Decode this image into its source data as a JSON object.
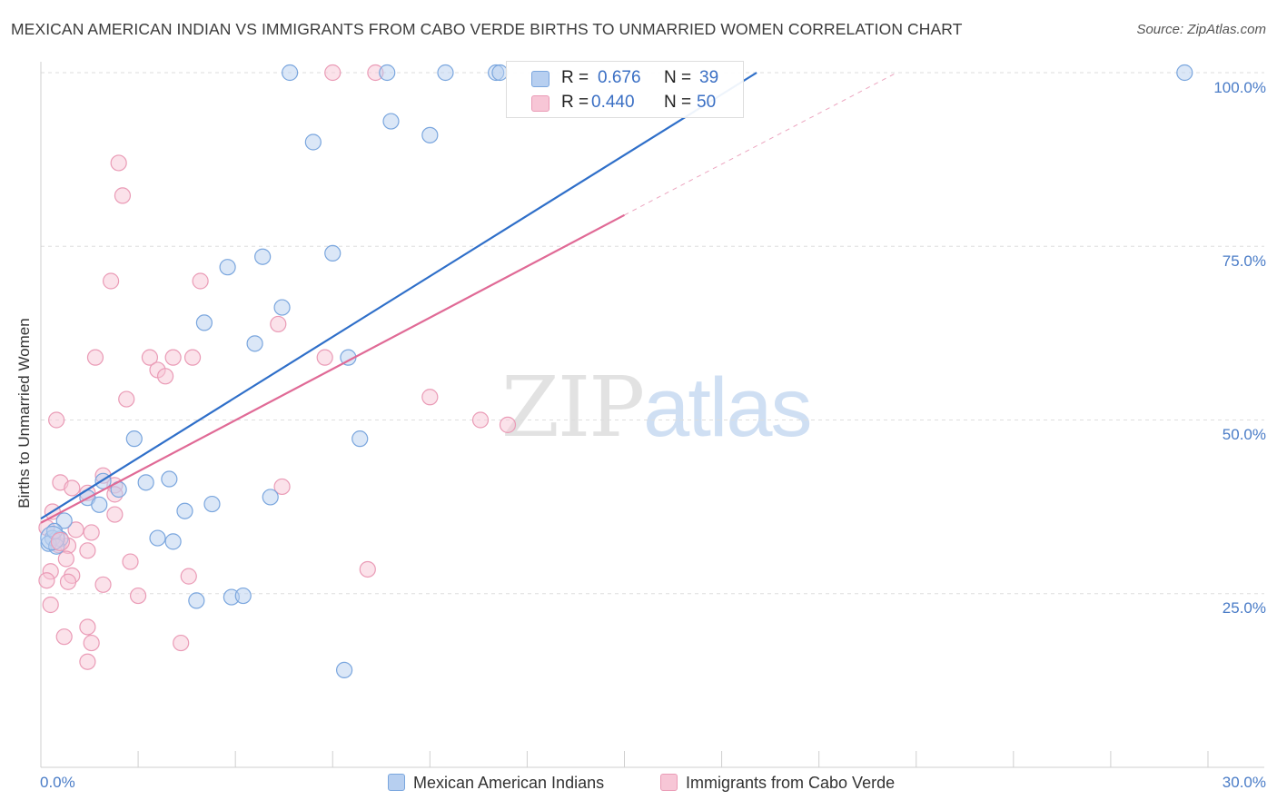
{
  "header": {
    "title": "MEXICAN AMERICAN INDIAN VS IMMIGRANTS FROM CABO VERDE BIRTHS TO UNMARRIED WOMEN CORRELATION CHART",
    "source": "Source: ZipAtlas.com"
  },
  "watermark": {
    "zip": "ZIP",
    "atlas": "atlas"
  },
  "legend": {
    "r_label": "R =",
    "n_label": "N =",
    "rows": [
      {
        "r": "0.676",
        "n": "39"
      },
      {
        "r": "0.440",
        "n": "50"
      }
    ]
  },
  "colors": {
    "blue_fill": "#b7cff0",
    "blue_stroke": "#7aa6de",
    "blue_line": "#2f6fc9",
    "pink_fill": "#f7c6d6",
    "pink_stroke": "#ea9bb6",
    "pink_line": "#e06a96"
  },
  "chart_data": {
    "type": "scatter",
    "title": "MEXICAN AMERICAN INDIAN VS IMMIGRANTS FROM CABO VERDE BIRTHS TO UNMARRIED WOMEN CORRELATION CHART",
    "xlabel": "",
    "ylabel": "Births to Unmarried Women",
    "xlim": [
      0,
      30
    ],
    "ylim": [
      0,
      103
    ],
    "x_tick_labels": [
      {
        "value": 0,
        "label": "0.0%"
      },
      {
        "value": 30,
        "label": "30.0%"
      }
    ],
    "y_tick_labels": [
      {
        "value": 25,
        "label": "25.0%"
      },
      {
        "value": 50,
        "label": "50.0%"
      },
      {
        "value": 75,
        "label": "75.0%"
      },
      {
        "value": 100,
        "label": "100.0%"
      }
    ],
    "legend_position": "bottom-center",
    "series": [
      {
        "name": "Mexican American Indians",
        "r": 0.676,
        "n": 39,
        "trend": {
          "x": [
            0,
            18.4
          ],
          "y": [
            35.8,
            100
          ]
        },
        "points": [
          [
            6.4,
            100
          ],
          [
            8.9,
            100
          ],
          [
            10.4,
            100
          ],
          [
            11.7,
            100
          ],
          [
            11.8,
            100
          ],
          [
            29.4,
            100
          ],
          [
            7.0,
            90.0
          ],
          [
            9.0,
            93.0
          ],
          [
            10.0,
            91.0
          ],
          [
            4.8,
            72.0
          ],
          [
            5.7,
            73.5
          ],
          [
            7.5,
            74.0
          ],
          [
            4.2,
            64.0
          ],
          [
            6.2,
            66.2
          ],
          [
            5.5,
            61.0
          ],
          [
            7.9,
            59.0
          ],
          [
            2.4,
            47.3
          ],
          [
            8.2,
            47.3
          ],
          [
            1.6,
            41.2
          ],
          [
            2.0,
            40.0
          ],
          [
            2.7,
            41.0
          ],
          [
            3.3,
            41.5
          ],
          [
            1.2,
            38.8
          ],
          [
            1.5,
            37.8
          ],
          [
            3.7,
            36.9
          ],
          [
            4.4,
            37.9
          ],
          [
            5.9,
            38.9
          ],
          [
            0.6,
            35.5
          ],
          [
            0.3,
            33.0
          ],
          [
            0.5,
            32.9
          ],
          [
            0.2,
            32.2
          ],
          [
            0.4,
            31.8
          ],
          [
            3.0,
            33.0
          ],
          [
            3.4,
            32.5
          ],
          [
            4.0,
            24.0
          ],
          [
            4.9,
            24.5
          ],
          [
            5.2,
            24.7
          ],
          [
            7.8,
            14.0
          ],
          [
            0.35,
            34.0
          ]
        ]
      },
      {
        "name": "Immigrants from Cabo Verde",
        "r": 0.44,
        "n": 50,
        "trend": {
          "x": [
            0,
            15.0
          ],
          "y": [
            35.2,
            79.5
          ]
        },
        "trend_dashed": {
          "x": [
            15.0,
            22.0
          ],
          "y": [
            79.5,
            100
          ]
        },
        "points": [
          [
            7.5,
            100
          ],
          [
            8.6,
            100
          ],
          [
            2.0,
            87.0
          ],
          [
            2.1,
            82.3
          ],
          [
            1.8,
            70.0
          ],
          [
            4.1,
            70.0
          ],
          [
            6.1,
            63.8
          ],
          [
            1.4,
            59.0
          ],
          [
            2.8,
            59.0
          ],
          [
            3.4,
            59.0
          ],
          [
            3.9,
            59.0
          ],
          [
            7.3,
            59.0
          ],
          [
            3.0,
            57.2
          ],
          [
            3.2,
            56.3
          ],
          [
            2.2,
            53.0
          ],
          [
            10.0,
            53.3
          ],
          [
            11.3,
            50.0
          ],
          [
            12.0,
            49.3
          ],
          [
            0.4,
            50.0
          ],
          [
            0.5,
            41.0
          ],
          [
            1.6,
            42.0
          ],
          [
            0.8,
            40.2
          ],
          [
            1.2,
            39.5
          ],
          [
            1.9,
            40.6
          ],
          [
            1.9,
            39.3
          ],
          [
            6.2,
            40.4
          ],
          [
            0.3,
            36.8
          ],
          [
            1.9,
            36.4
          ],
          [
            0.15,
            34.5
          ],
          [
            0.9,
            34.2
          ],
          [
            1.3,
            33.8
          ],
          [
            0.45,
            32.0
          ],
          [
            0.7,
            31.9
          ],
          [
            1.2,
            31.2
          ],
          [
            0.65,
            30.0
          ],
          [
            2.3,
            29.6
          ],
          [
            0.25,
            28.2
          ],
          [
            8.4,
            28.5
          ],
          [
            0.8,
            27.6
          ],
          [
            3.8,
            27.5
          ],
          [
            0.15,
            26.9
          ],
          [
            0.7,
            26.7
          ],
          [
            1.6,
            26.3
          ],
          [
            2.5,
            24.7
          ],
          [
            0.25,
            23.4
          ],
          [
            1.2,
            20.2
          ],
          [
            0.6,
            18.8
          ],
          [
            1.3,
            17.9
          ],
          [
            3.6,
            17.9
          ],
          [
            1.2,
            15.2
          ]
        ]
      }
    ]
  }
}
